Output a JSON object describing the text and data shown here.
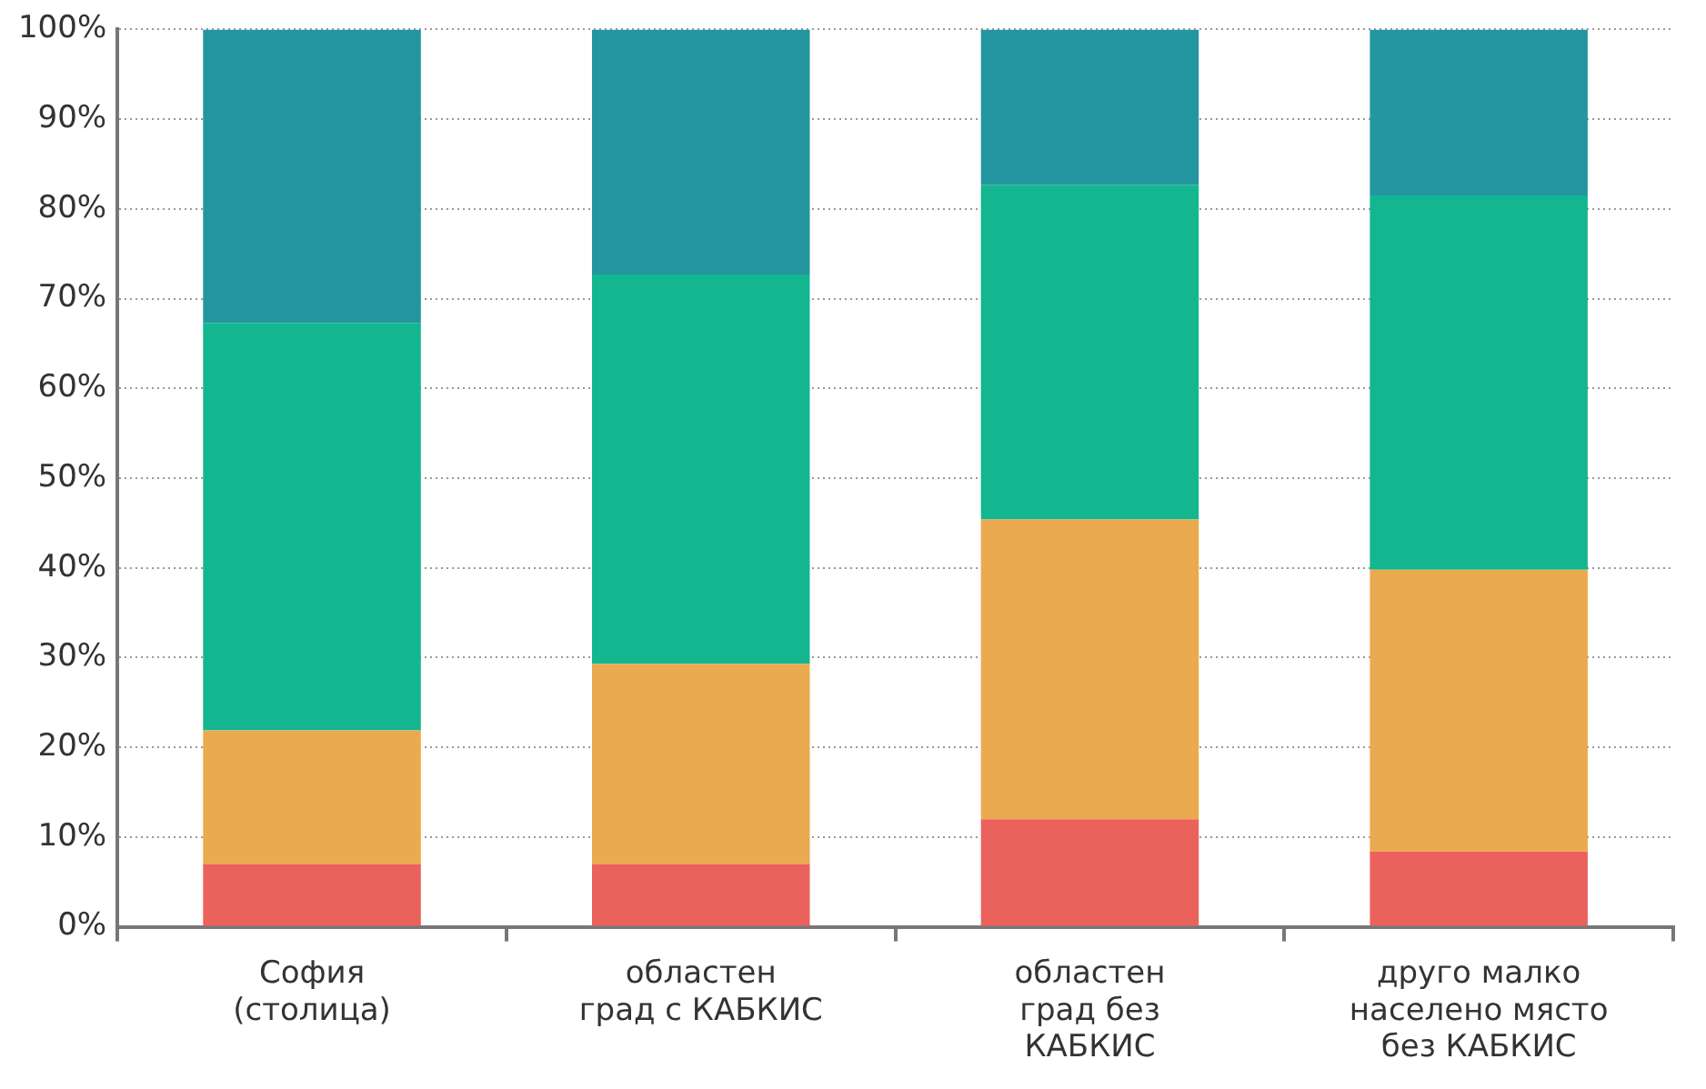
{
  "chart_data": {
    "type": "bar",
    "stacked": true,
    "legend": false,
    "grid": "y",
    "categories": [
      "София\n(столица)",
      "областен\nград с КАБКИС",
      "областен\nград без\nКАБКИС",
      "друго малко\nнаселено място\nбез КАБКИС"
    ],
    "ylim": [
      0,
      100
    ],
    "yticks": [
      {
        "value": 0,
        "label": "0%"
      },
      {
        "value": 10,
        "label": "10%"
      },
      {
        "value": 20,
        "label": "20%"
      },
      {
        "value": 30,
        "label": "30%"
      },
      {
        "value": 40,
        "label": "40%"
      },
      {
        "value": 50,
        "label": "50%"
      },
      {
        "value": 60,
        "label": "60%"
      },
      {
        "value": 70,
        "label": "70%"
      },
      {
        "value": 80,
        "label": "80%"
      },
      {
        "value": 90,
        "label": "90%"
      },
      {
        "value": 100,
        "label": "100%"
      }
    ],
    "series": [
      {
        "color": "#eb625d",
        "values": [
          7,
          7,
          12,
          8.4
        ]
      },
      {
        "color": "#eaaa4f",
        "values": [
          14.9,
          22.3,
          33.4,
          31.4
        ]
      },
      {
        "color": "#14b690",
        "values": [
          45.4,
          43.4,
          37.3,
          41.7
        ]
      },
      {
        "color": "#23969f",
        "values": [
          32.7,
          27.3,
          17.3,
          18.5
        ]
      }
    ]
  }
}
